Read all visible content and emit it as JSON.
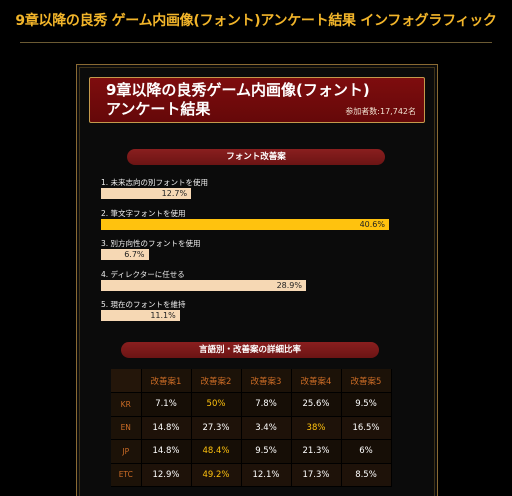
{
  "page": {
    "title": "9章以降の良秀 ゲーム内画像(フォント)アンケート結果 インフォグラフィック"
  },
  "banner": {
    "title_line1": "9章以降の良秀ゲーム内画像(フォント)",
    "title_line2": "アンケート結果",
    "participants": "参加者数:17,742名"
  },
  "colors": {
    "accent_gold": "#ffc20e",
    "banner_red": "#7e0d0e",
    "bar_cream": "#f6d8b4",
    "table_label_orange": "#cc6c26"
  },
  "chart_data": [
    {
      "type": "bar",
      "title": "フォント改善案",
      "orientation": "horizontal",
      "categories": [
        "1. 未来志向の別フォントを使用",
        "2. 筆文字フォントを使用",
        "3. 別方向性のフォントを使用",
        "4. ディレクターに任せる",
        "5. 現在のフォントを維持"
      ],
      "values": [
        12.7,
        40.6,
        6.7,
        28.9,
        11.1
      ],
      "value_labels": [
        "12.7%",
        "40.6%",
        "6.7%",
        "28.9%",
        "11.1%"
      ],
      "xlim": [
        0,
        40.6
      ],
      "highlight_index": 1
    },
    {
      "type": "table",
      "title": "言語別・改善案の詳細比率",
      "columns": [
        "改善案1",
        "改善案2",
        "改善案3",
        "改善案4",
        "改善案5"
      ],
      "rows": [
        {
          "label": "KR",
          "values": [
            "7.1%",
            "50%",
            "7.8%",
            "25.6%",
            "9.5%"
          ],
          "highlight": [
            1
          ]
        },
        {
          "label": "EN",
          "values": [
            "14.8%",
            "27.3%",
            "3.4%",
            "38%",
            "16.5%"
          ],
          "highlight": [
            3
          ]
        },
        {
          "label": "JP",
          "values": [
            "14.8%",
            "48.4%",
            "9.5%",
            "21.3%",
            "6%"
          ],
          "highlight": [
            1
          ]
        },
        {
          "label": "ETC",
          "values": [
            "12.9%",
            "49.2%",
            "12.1%",
            "17.3%",
            "8.5%"
          ],
          "highlight": [
            1
          ]
        }
      ]
    }
  ]
}
